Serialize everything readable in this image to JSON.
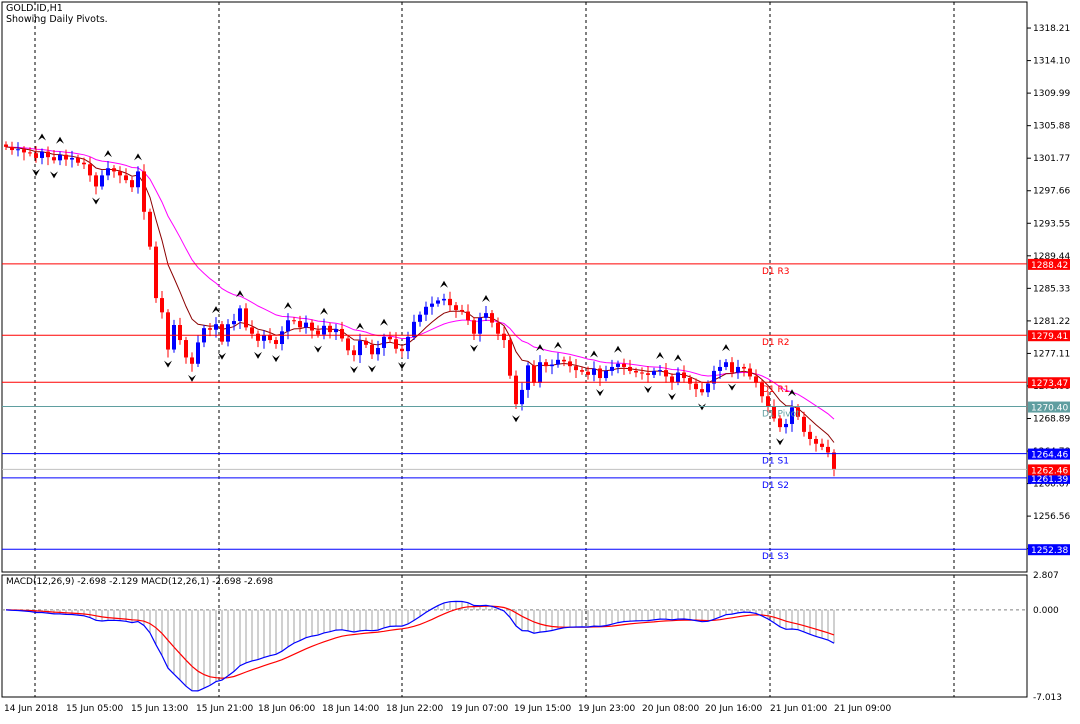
{
  "chart_data": {
    "type": "candlestick",
    "title": "GOLD.ID,H1",
    "subtitle": "Showing Daily Pivots.",
    "price_axis": {
      "ylim": [
        1249.5,
        1321.5
      ],
      "ticks": [
        "1318.21",
        "1314.10",
        "1309.99",
        "1305.88",
        "1301.77",
        "1297.66",
        "1293.55",
        "1289.44",
        "1285.33",
        "1281.22",
        "1277.11",
        "1273.00",
        "1268.89",
        "1264.78",
        "1260.67",
        "1256.56",
        "1252.45"
      ]
    },
    "x_axis": {
      "labels": [
        "14 Jun 2018",
        "15 Jun 05:00",
        "15 Jun 13:00",
        "15 Jun 21:00",
        "18 Jun 06:00",
        "18 Jun 14:00",
        "18 Jun 22:00",
        "19 Jun 07:00",
        "19 Jun 15:00",
        "19 Jun 23:00",
        "20 Jun 08:00",
        "20 Jun 16:00",
        "21 Jun 01:00",
        "21 Jun 09:00"
      ],
      "day_separators": 8
    },
    "pivot_levels": [
      {
        "name": "D1 R3",
        "value": 1288.42,
        "label": "1288.42",
        "color": "#ff0000",
        "badge": "#ff0000"
      },
      {
        "name": "D1 R2",
        "value": 1279.41,
        "label": "1279.41",
        "color": "#ff0000",
        "badge": "#ff0000"
      },
      {
        "name": "D1 R1",
        "value": 1273.47,
        "label": "1273.47",
        "color": "#ff0000",
        "badge": "#ff0000"
      },
      {
        "name": "D1 Pivot",
        "value": 1270.4,
        "label": "1270.40",
        "color": "#5f9ea0",
        "badge": "#5f9ea0"
      },
      {
        "name": "D1 S1",
        "value": 1264.46,
        "label": "1264.46",
        "color": "#0000ff",
        "badge": "#0000ff"
      },
      {
        "name": "D1 S2",
        "value": 1261.39,
        "label": "1261.39",
        "color": "#0000ff",
        "badge": "#0000ff"
      },
      {
        "name": "D1 S3",
        "value": 1252.38,
        "label": "1252.38",
        "color": "#0000ff",
        "badge": "#0000ff"
      }
    ],
    "current_price": {
      "value": 1262.46,
      "label": "1262.46",
      "color": "#ff0000"
    },
    "candles_close": [
      1303.2,
      1302.8,
      1302.9,
      1302.5,
      1302.4,
      1301.8,
      1302.6,
      1301.9,
      1301.5,
      1302.2,
      1301.6,
      1301.8,
      1301.2,
      1301.0,
      1299.6,
      1298.2,
      1299.6,
      1300.5,
      1300.1,
      1299.6,
      1299.0,
      1298.1,
      1300.1,
      1295.0,
      1290.6,
      1284.1,
      1282.3,
      1277.6,
      1280.7,
      1278.8,
      1276.6,
      1275.8,
      1278.5,
      1280.3,
      1280.1,
      1280.8,
      1278.6,
      1280.8,
      1281.2,
      1282.8,
      1280.4,
      1279.6,
      1278.7,
      1279.4,
      1278.8,
      1278.3,
      1279.9,
      1281.3,
      1281.2,
      1280.4,
      1281.0,
      1280.0,
      1279.5,
      1280.6,
      1279.8,
      1280.2,
      1279.0,
      1277.5,
      1276.9,
      1278.7,
      1278.2,
      1277.0,
      1277.8,
      1279.2,
      1278.9,
      1277.7,
      1277.4,
      1279.2,
      1281.1,
      1282.0,
      1283.0,
      1283.4,
      1283.8,
      1284.0,
      1283.2,
      1282.6,
      1282.4,
      1281.3,
      1279.6,
      1281.6,
      1282.2,
      1281.0,
      1279.6,
      1278.8,
      1274.3,
      1270.7,
      1272.5,
      1275.6,
      1273.4,
      1276.0,
      1275.5,
      1275.7,
      1276.3,
      1276.1,
      1275.5,
      1275.0,
      1274.8,
      1274.4,
      1275.2,
      1274.0,
      1274.9,
      1275.4,
      1275.8,
      1275.4,
      1274.9,
      1274.7,
      1274.6,
      1274.4,
      1274.9,
      1275.0,
      1274.2,
      1273.5,
      1274.7,
      1274.0,
      1273.3,
      1272.6,
      1272.2,
      1273.3,
      1274.9,
      1275.4,
      1276.0,
      1274.7,
      1275.4,
      1275.2,
      1274.2,
      1273.4,
      1271.7,
      1270.4,
      1268.9,
      1267.8,
      1268.2,
      1270.3,
      1269.1,
      1267.2,
      1266.3,
      1265.7,
      1265.3,
      1264.6,
      1262.4
    ],
    "macd": {
      "label": "MACD(12,26,9) -2.698 -2.129 MACD(12,26,1) -2.698 -2.698",
      "ylim": [
        -7.013,
        2.807
      ],
      "ticks": [
        "2.807",
        "0.000",
        "-7.013"
      ],
      "histogram_color": "#a0a0a0",
      "main_color": "#0000ff",
      "signal_color": "#ff0000"
    },
    "colors": {
      "bull": "#0000ff",
      "bear": "#ff0000",
      "ma_fast": "#8b0000",
      "ma_slow": "#ff00ff",
      "grid": "#000000",
      "fractal": "#000000"
    }
  }
}
